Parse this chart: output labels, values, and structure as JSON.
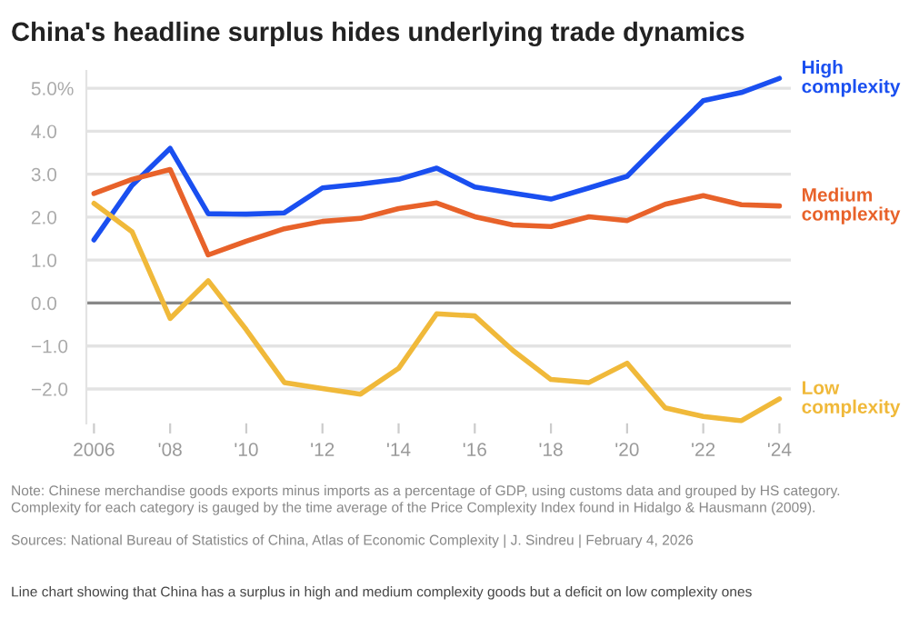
{
  "chart_data": {
    "type": "line",
    "title": "China's headline surplus hides underlying trade dynamics",
    "x": [
      2006,
      2007,
      2008,
      2009,
      2010,
      2011,
      2012,
      2013,
      2014,
      2015,
      2016,
      2017,
      2018,
      2019,
      2020,
      2021,
      2022,
      2023,
      2024
    ],
    "series": [
      {
        "name": "High complexity",
        "color": "#1a4ff0",
        "values": [
          1.47,
          2.74,
          3.6,
          2.08,
          2.07,
          2.1,
          2.68,
          2.77,
          2.88,
          3.14,
          2.7,
          2.56,
          2.42,
          2.68,
          2.95,
          3.84,
          4.71,
          4.9,
          5.23
        ]
      },
      {
        "name": "Medium complexity",
        "color": "#e8622a",
        "values": [
          2.55,
          2.88,
          3.11,
          1.12,
          1.44,
          1.73,
          1.9,
          1.97,
          2.2,
          2.33,
          2.01,
          1.82,
          1.78,
          2.01,
          1.92,
          2.3,
          2.5,
          2.29,
          2.26
        ]
      },
      {
        "name": "Low complexity",
        "color": "#f0b93a",
        "values": [
          2.32,
          1.66,
          -0.36,
          0.52,
          -0.62,
          -1.85,
          -1.99,
          -2.12,
          -1.52,
          -0.25,
          -0.3,
          -1.1,
          -1.78,
          -1.85,
          -1.4,
          -2.44,
          -2.64,
          -2.74,
          -2.23
        ]
      }
    ],
    "xlim": [
      2005.8,
      2024.3
    ],
    "xticks": [
      {
        "value": 2006,
        "label": "2006"
      },
      {
        "value": 2008,
        "label": "'08"
      },
      {
        "value": 2010,
        "label": "'10"
      },
      {
        "value": 2012,
        "label": "'12"
      },
      {
        "value": 2014,
        "label": "'14"
      },
      {
        "value": 2016,
        "label": "'16"
      },
      {
        "value": 2018,
        "label": "'18"
      },
      {
        "value": 2020,
        "label": "'20"
      },
      {
        "value": 2022,
        "label": "'22"
      },
      {
        "value": 2024,
        "label": "'24"
      }
    ],
    "ylim": [
      -2.8,
      5.4
    ],
    "yticks": [
      {
        "value": -2,
        "label": "−2.0"
      },
      {
        "value": -1,
        "label": "−1.0"
      },
      {
        "value": 0,
        "label": "0.0"
      },
      {
        "value": 1,
        "label": "1.0"
      },
      {
        "value": 2,
        "label": "2.0"
      },
      {
        "value": 3,
        "label": "3.0"
      },
      {
        "value": 4,
        "label": "4.0"
      },
      {
        "value": 5,
        "label": "5.0%"
      }
    ],
    "grid": "y",
    "legend": false,
    "marker": "none",
    "line_style": "solid",
    "ref_lines": [
      {
        "axis": "y",
        "value": 0,
        "label": null,
        "color": "#888888"
      }
    ],
    "annotations": [
      "Note: Chinese merchandise goods exports minus imports as a percentage of GDP, using customs data and grouped by HS category. Complexity for each category is gauged by the time average of the Price Complexity Index found in Hidalgo & Hausmann (2009).",
      "Sources: National Bureau of Statistics of China, Atlas of Economic Complexity | J. Sindreu | February 4, 2026",
      "Line chart showing that China has a surplus in high and medium complexity goods but a deficit on low complexity ones"
    ]
  }
}
